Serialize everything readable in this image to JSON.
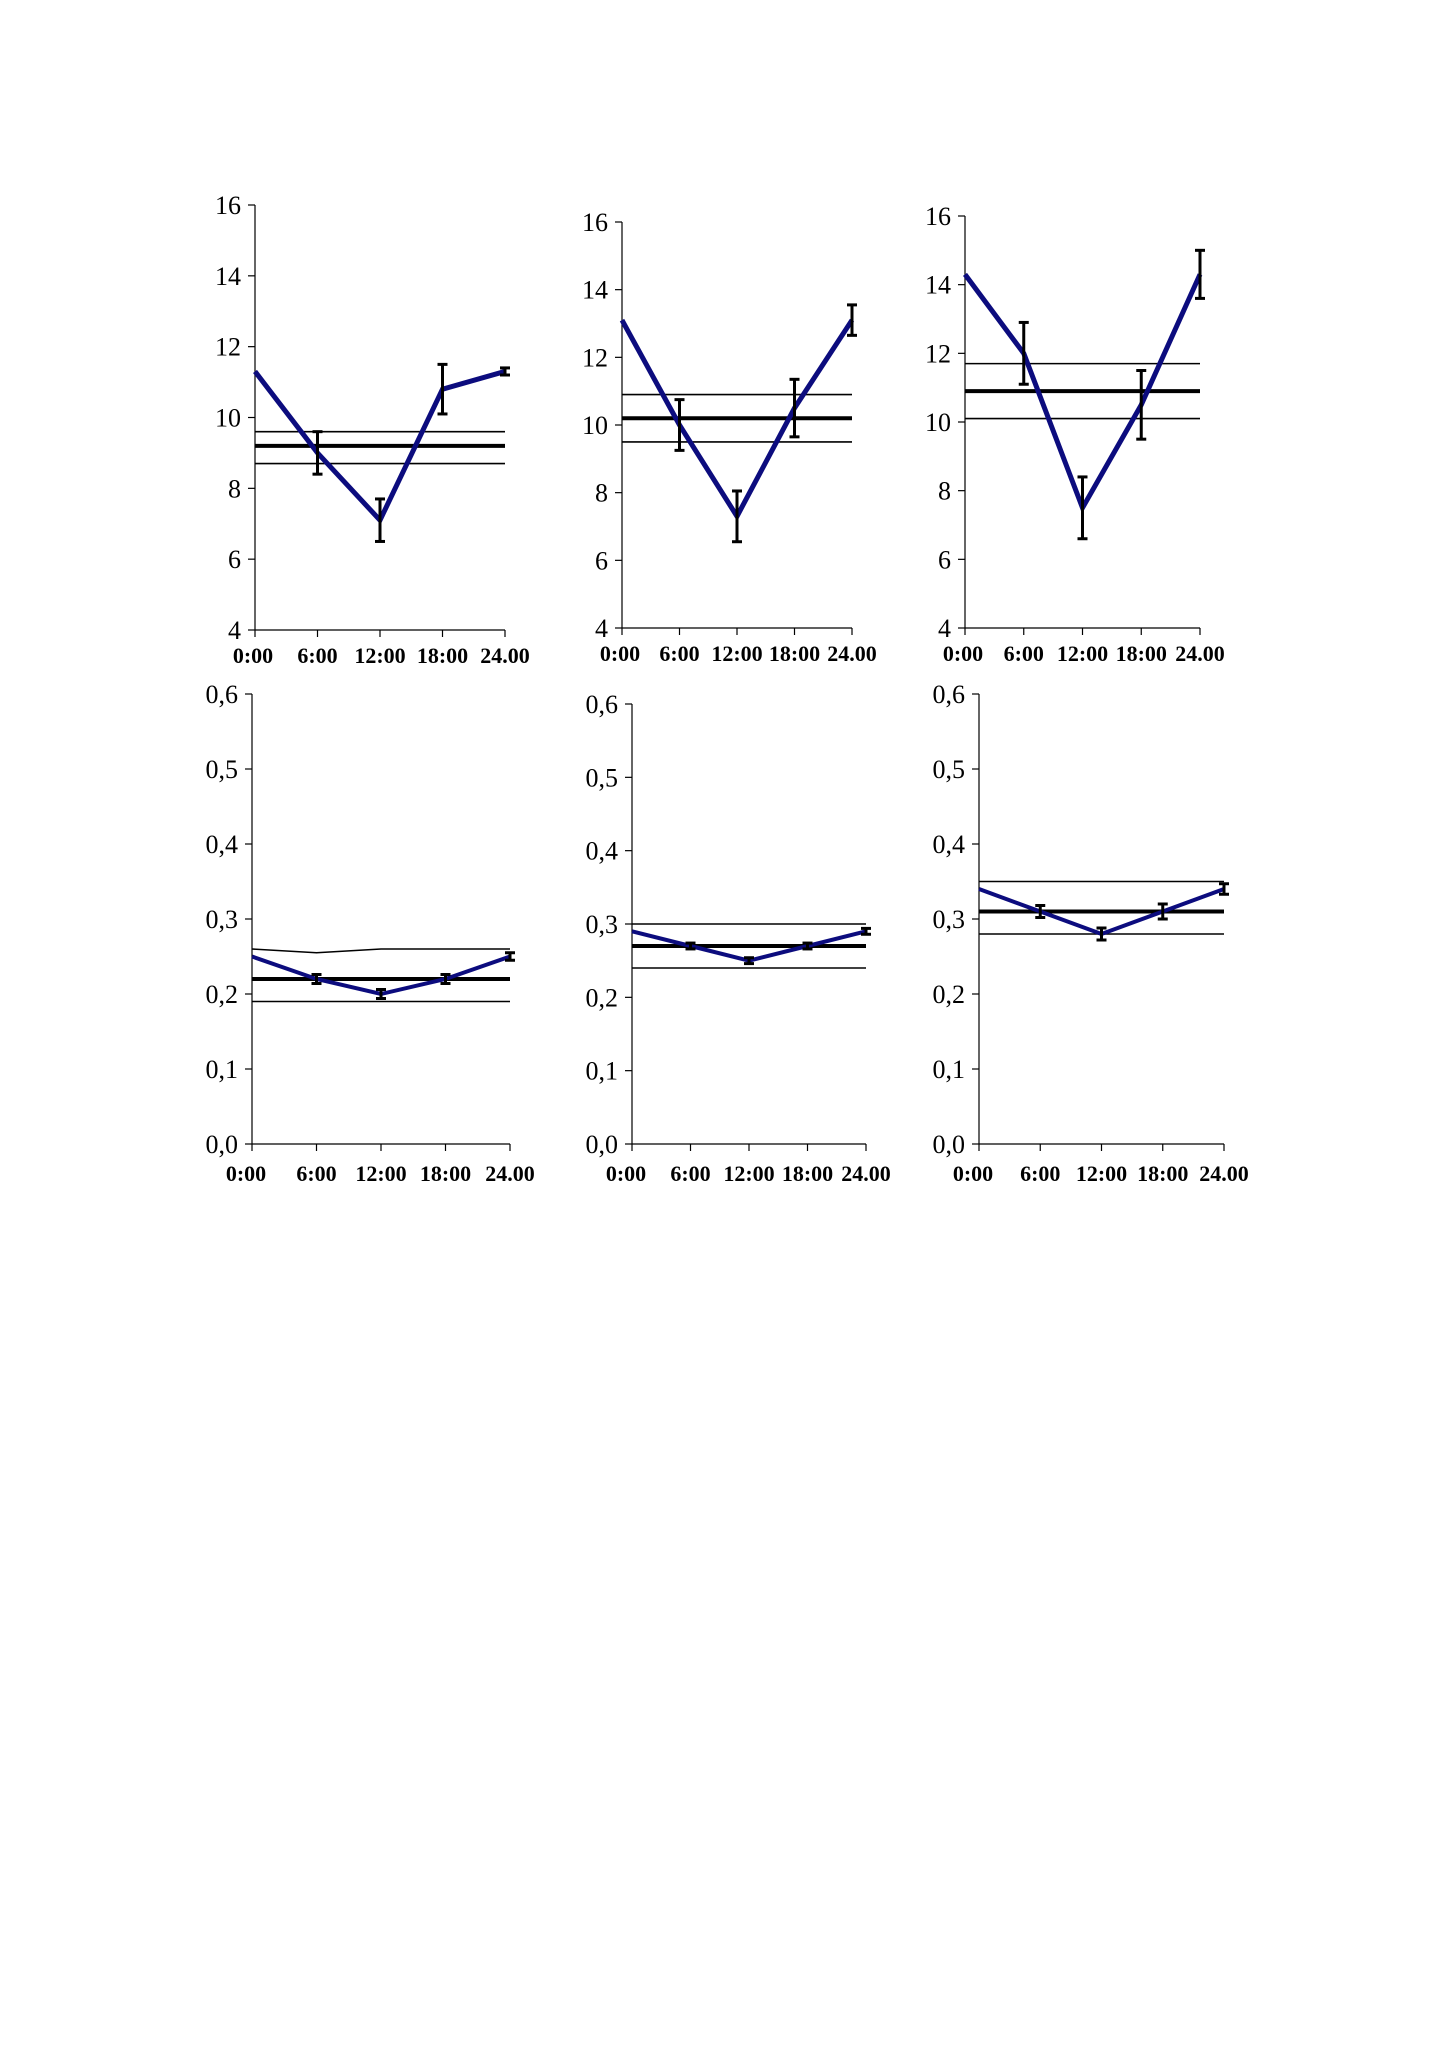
{
  "colors": {
    "series": "#0c0c7e",
    "axis": "#000000",
    "band": "#000000",
    "errorbar": "#000000"
  },
  "chart_data": [
    {
      "type": "line",
      "categories": [
        "0:00",
        "6:00",
        "12:00",
        "18:00",
        "24.00"
      ],
      "ylim": [
        4,
        16
      ],
      "yticks": [
        "4",
        "6",
        "8",
        "10",
        "12",
        "14",
        "16"
      ],
      "series": [
        {
          "values": [
            11.3,
            9.0,
            7.1,
            10.8,
            11.3
          ],
          "errors": [
            0,
            0.6,
            0.6,
            0.7,
            0.1
          ]
        }
      ],
      "reference": {
        "mean": [
          9.2,
          9.2,
          9.2,
          9.2,
          9.2
        ],
        "upper": [
          9.6,
          9.6,
          9.6,
          9.6,
          9.6
        ],
        "lower": [
          8.7,
          8.7,
          8.7,
          8.7,
          8.7
        ]
      }
    },
    {
      "type": "line",
      "categories": [
        "0:00",
        "6:00",
        "12:00",
        "18:00",
        "24.00"
      ],
      "ylim": [
        4,
        16
      ],
      "yticks": [
        "4",
        "6",
        "8",
        "10",
        "12",
        "14",
        "16"
      ],
      "series": [
        {
          "values": [
            13.1,
            10.0,
            7.3,
            10.5,
            13.1
          ],
          "errors": [
            0,
            0.75,
            0.75,
            0.85,
            0.45
          ]
        }
      ],
      "reference": {
        "mean": [
          10.2,
          10.2,
          10.2,
          10.2,
          10.2
        ],
        "upper": [
          10.9,
          10.9,
          10.9,
          10.9,
          10.9
        ],
        "lower": [
          9.5,
          9.5,
          9.5,
          9.5,
          9.5
        ]
      }
    },
    {
      "type": "line",
      "categories": [
        "0:00",
        "6:00",
        "12:00",
        "18:00",
        "24.00"
      ],
      "ylim": [
        4,
        16
      ],
      "yticks": [
        "4",
        "6",
        "8",
        "10",
        "12",
        "14",
        "16"
      ],
      "series": [
        {
          "values": [
            14.3,
            12.0,
            7.5,
            10.5,
            14.3
          ],
          "errors": [
            0,
            0.9,
            0.9,
            1.0,
            0.7
          ]
        }
      ],
      "reference": {
        "mean": [
          10.9,
          10.9,
          10.9,
          10.9,
          10.9
        ],
        "upper": [
          11.7,
          11.7,
          11.7,
          11.7,
          11.7
        ],
        "lower": [
          10.1,
          10.1,
          10.1,
          10.1,
          10.1
        ]
      }
    },
    {
      "type": "line",
      "categories": [
        "0:00",
        "6:00",
        "12:00",
        "18:00",
        "24.00"
      ],
      "ylim": [
        0,
        0.6
      ],
      "yticks": [
        "0,0",
        "0,1",
        "0,2",
        "0,3",
        "0,4",
        "0,5",
        "0,6"
      ],
      "series": [
        {
          "values": [
            0.25,
            0.22,
            0.2,
            0.22,
            0.25
          ],
          "errors": [
            0,
            0.006,
            0.006,
            0.006,
            0.005
          ]
        }
      ],
      "reference": {
        "mean": [
          0.22,
          0.22,
          0.22,
          0.22,
          0.22
        ],
        "upper": [
          0.26,
          0.255,
          0.26,
          0.26,
          0.26
        ],
        "lower": [
          0.19,
          0.19,
          0.19,
          0.19,
          0.19
        ]
      }
    },
    {
      "type": "line",
      "categories": [
        "0:00",
        "6:00",
        "12:00",
        "18:00",
        "24.00"
      ],
      "ylim": [
        0,
        0.6
      ],
      "yticks": [
        "0,0",
        "0,1",
        "0,2",
        "0,3",
        "0,4",
        "0,5",
        "0,6"
      ],
      "series": [
        {
          "values": [
            0.29,
            0.27,
            0.25,
            0.27,
            0.29
          ],
          "errors": [
            0,
            0.004,
            0.004,
            0.004,
            0.004
          ]
        }
      ],
      "reference": {
        "mean": [
          0.27,
          0.27,
          0.27,
          0.27,
          0.27
        ],
        "upper": [
          0.3,
          0.3,
          0.3,
          0.3,
          0.3
        ],
        "lower": [
          0.24,
          0.24,
          0.24,
          0.24,
          0.24
        ]
      }
    },
    {
      "type": "line",
      "categories": [
        "0:00",
        "6:00",
        "12:00",
        "18:00",
        "24.00"
      ],
      "ylim": [
        0,
        0.6
      ],
      "yticks": [
        "0,0",
        "0,1",
        "0,2",
        "0,3",
        "0,4",
        "0,5",
        "0,6"
      ],
      "series": [
        {
          "values": [
            0.34,
            0.31,
            0.28,
            0.31,
            0.34
          ],
          "errors": [
            0,
            0.008,
            0.008,
            0.01,
            0.007
          ]
        }
      ],
      "reference": {
        "mean": [
          0.31,
          0.31,
          0.31,
          0.31,
          0.31
        ],
        "upper": [
          0.35,
          0.35,
          0.35,
          0.35,
          0.35
        ],
        "lower": [
          0.28,
          0.28,
          0.28,
          0.28,
          0.28
        ]
      }
    }
  ]
}
